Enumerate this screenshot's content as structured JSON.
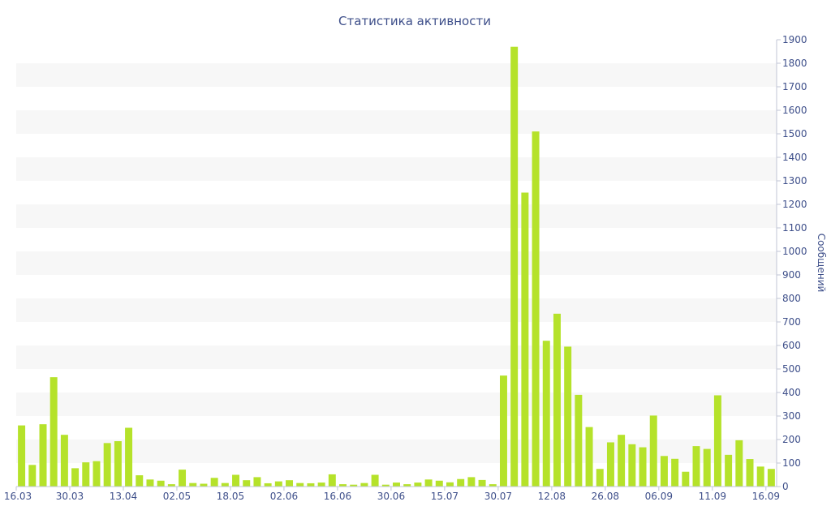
{
  "chart_data": {
    "type": "bar",
    "title": "Статистика активности",
    "xlabel": "",
    "ylabel": "Сообщений",
    "y_axis_position": "right",
    "ylim": [
      0,
      1900
    ],
    "yticks": [
      0,
      100,
      200,
      300,
      400,
      500,
      600,
      700,
      800,
      900,
      1000,
      1100,
      1200,
      1300,
      1400,
      1500,
      1600,
      1700,
      1800,
      1900
    ],
    "grid": "alternating horizontal bands",
    "x_tick_labels": [
      {
        "label": "16.03",
        "index": 0
      },
      {
        "label": "30.03",
        "index": 5
      },
      {
        "label": "13.04",
        "index": 10
      },
      {
        "label": "02.05",
        "index": 15
      },
      {
        "label": "18.05",
        "index": 20
      },
      {
        "label": "02.06",
        "index": 25
      },
      {
        "label": "16.06",
        "index": 30
      },
      {
        "label": "30.06",
        "index": 35
      },
      {
        "label": "15.07",
        "index": 40
      },
      {
        "label": "30.07",
        "index": 45
      },
      {
        "label": "12.08",
        "index": 50
      },
      {
        "label": "26.08",
        "index": 55
      },
      {
        "label": "06.09",
        "index": 60
      },
      {
        "label": "11.09",
        "index": 65
      },
      {
        "label": "16.09",
        "index": 70
      }
    ],
    "values": [
      260,
      92,
      265,
      465,
      220,
      78,
      103,
      108,
      185,
      193,
      250,
      48,
      30,
      25,
      10,
      72,
      15,
      12,
      37,
      15,
      50,
      27,
      40,
      14,
      22,
      27,
      15,
      14,
      17,
      52,
      10,
      8,
      15,
      50,
      8,
      17,
      10,
      17,
      30,
      25,
      18,
      32,
      40,
      28,
      10,
      472,
      1870,
      1250,
      1510,
      620,
      735,
      595,
      390,
      253,
      75,
      188,
      220,
      180,
      167,
      302,
      130,
      118,
      63,
      172,
      160,
      388,
      135,
      197,
      117,
      85,
      75
    ],
    "bar_color": "#b5e22a"
  }
}
